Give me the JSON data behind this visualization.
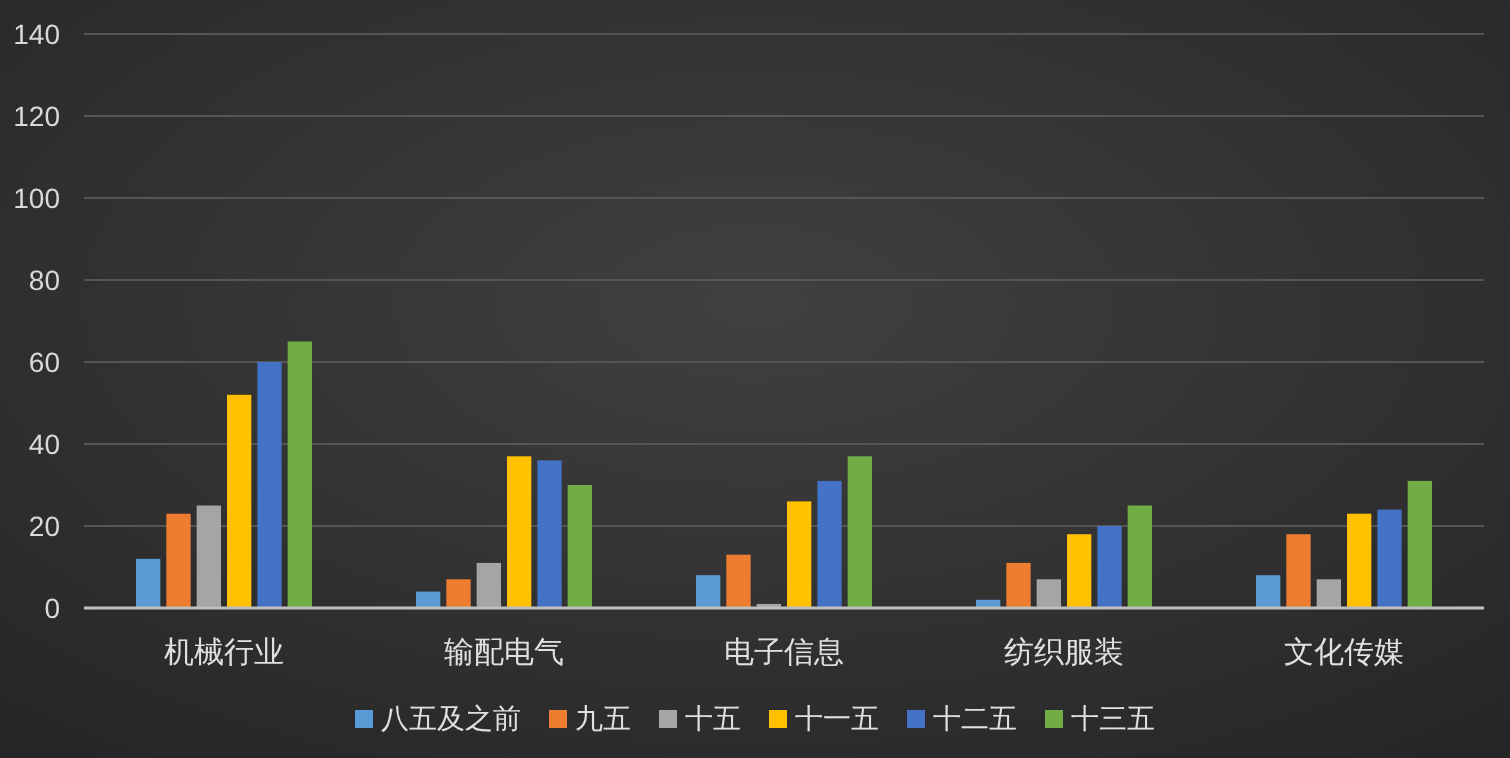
{
  "chart_data": {
    "type": "bar",
    "categories": [
      "机械行业",
      "输配电气",
      "电子信息",
      "纺织服装",
      "文化传媒"
    ],
    "series": [
      {
        "name": "八五及之前",
        "color": "#5b9bd5",
        "values": [
          12,
          4,
          8,
          2,
          8
        ]
      },
      {
        "name": "九五",
        "color": "#ed7d31",
        "values": [
          23,
          7,
          13,
          11,
          18
        ]
      },
      {
        "name": "十五",
        "color": "#a5a5a5",
        "values": [
          25,
          11,
          1,
          7,
          7
        ]
      },
      {
        "name": "十一五",
        "color": "#ffc000",
        "values": [
          52,
          37,
          26,
          18,
          23
        ]
      },
      {
        "name": "十二五",
        "color": "#4472c4",
        "values": [
          60,
          36,
          31,
          20,
          24
        ]
      },
      {
        "name": "十三五",
        "color": "#70ad47",
        "values": [
          65,
          30,
          37,
          25,
          31
        ]
      }
    ],
    "ylim": [
      0,
      140
    ],
    "yticks": [
      0,
      20,
      40,
      60,
      80,
      100,
      120,
      140
    ],
    "grid": "y",
    "legend": "bottom"
  }
}
